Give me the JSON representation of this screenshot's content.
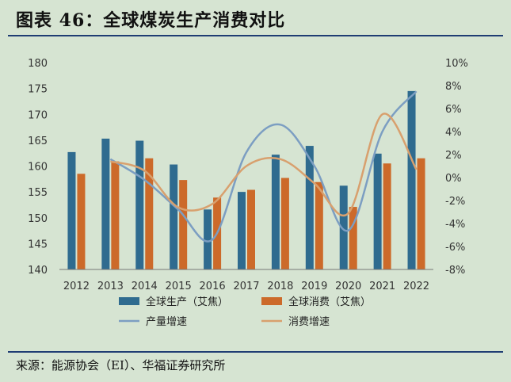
{
  "title": "图表 46：全球煤炭生产消费对比",
  "source": "来源：能源协会（EI）、华福证券研究所",
  "colors": {
    "production_bar": "#2f6b8f",
    "consumption_bar": "#cc6a2a",
    "production_growth": "#7c9ec2",
    "consumption_growth": "#d8a06e",
    "rule": "#1f3d73",
    "background": "#d6e4d2"
  },
  "chart_data": {
    "type": "bar",
    "categories": [
      "2012",
      "2013",
      "2014",
      "2015",
      "2016",
      "2017",
      "2018",
      "2019",
      "2020",
      "2021",
      "2022"
    ],
    "series": [
      {
        "name": "全球生产（艾焦）",
        "axis": "left",
        "kind": "bar",
        "values": [
          162.7,
          165.3,
          164.9,
          160.3,
          151.6,
          155.0,
          162.2,
          163.9,
          156.2,
          162.4,
          174.5
        ]
      },
      {
        "name": "全球消费（艾焦）",
        "axis": "left",
        "kind": "bar",
        "values": [
          158.5,
          160.9,
          161.5,
          157.3,
          153.9,
          155.4,
          157.7,
          156.9,
          152.1,
          160.5,
          161.5
        ]
      },
      {
        "name": "产量增速",
        "axis": "right",
        "kind": "line",
        "unit": "%",
        "values": [
          null,
          1.6,
          -0.2,
          -2.8,
          -5.4,
          2.2,
          4.6,
          1.0,
          -4.6,
          4.0,
          7.5
        ]
      },
      {
        "name": "消费增速",
        "axis": "right",
        "kind": "line",
        "unit": "%",
        "values": [
          null,
          1.4,
          0.6,
          -2.6,
          -2.3,
          1.0,
          1.6,
          -0.5,
          -3.1,
          5.5,
          0.7
        ]
      }
    ],
    "y_left": {
      "min": 140,
      "max": 180,
      "ticks": [
        "140",
        "145",
        "150",
        "155",
        "160",
        "165",
        "170",
        "175",
        "180"
      ]
    },
    "y_right": {
      "min": -8,
      "max": 10,
      "ticks": [
        "-8%",
        "-6%",
        "-4%",
        "-2%",
        "0%",
        "2%",
        "4%",
        "6%",
        "8%",
        "10%"
      ]
    },
    "grid": false,
    "legend_position": "bottom"
  }
}
